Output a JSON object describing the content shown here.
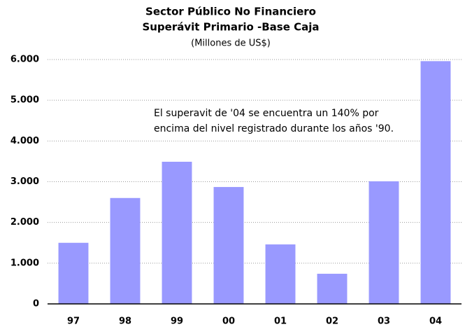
{
  "chart_data": {
    "type": "bar",
    "title": [
      "Sector Público No Financiero",
      "Superávit Primario -Base Caja"
    ],
    "subtitle": "(Millones de US$)",
    "annotation": [
      "El superavit de '04 se encuentra un 140% por",
      "encima del nivel registrado durante los años '90."
    ],
    "categories": [
      "97",
      "98",
      "99",
      "00",
      "01",
      "02",
      "03",
      "04"
    ],
    "values": [
      1500,
      2600,
      3490,
      2870,
      1460,
      740,
      3010,
      5960
    ],
    "color": "#9999ff",
    "ylim": [
      0,
      6000
    ],
    "yticks": [
      0,
      {
        "value": 1000,
        "label": "1.000"
      },
      {
        "value": 2000,
        "label": "2.000"
      },
      {
        "value": 3000,
        "label": "3.000"
      },
      {
        "value": 4000,
        "label": "4.000"
      },
      {
        "value": 5000,
        "label": "5.000"
      },
      {
        "value": 6000,
        "label": "6.000"
      }
    ],
    "grid": true
  }
}
